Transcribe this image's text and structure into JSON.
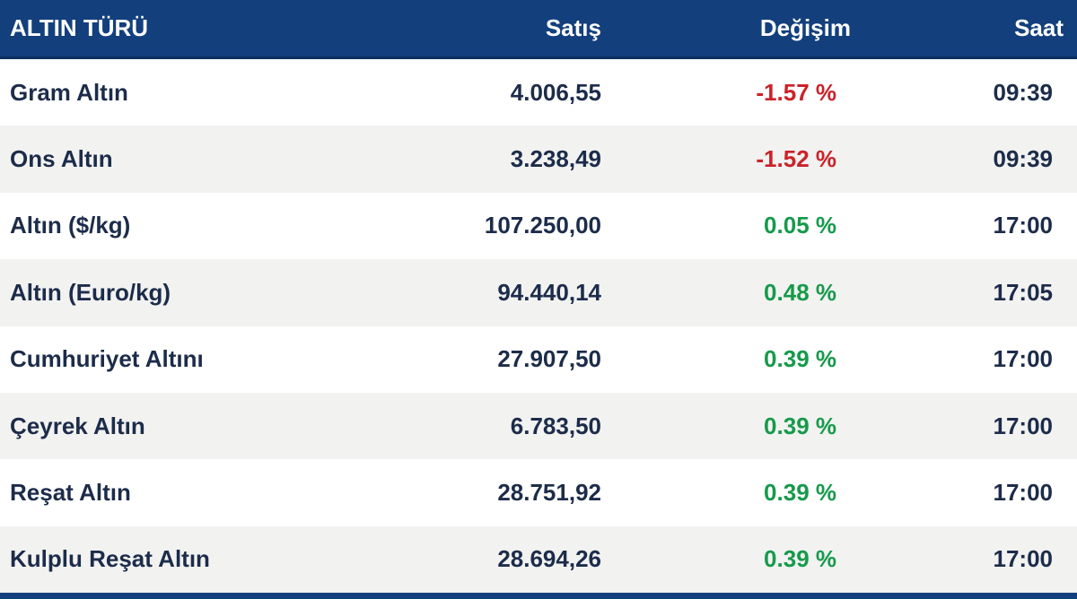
{
  "header": {
    "columns": {
      "type": "ALTIN TÜRÜ",
      "price": "Satış",
      "change": "Değişim",
      "time": "Saat"
    }
  },
  "colors": {
    "header_bg": "#133f7d",
    "header_border": "#0d2f5f",
    "row_alt_bg": "#f2f2f1",
    "text": "#1c2c4a",
    "negative": "#cb2229",
    "positive": "#169a4b"
  },
  "table": {
    "rows": [
      {
        "name": "Gram Altın",
        "price": "4.006,55",
        "change": "-1.57 %",
        "change_class": "neg",
        "time": "09:39"
      },
      {
        "name": "Ons Altın",
        "price": "3.238,49",
        "change": "-1.52 %",
        "change_class": "neg",
        "time": "09:39"
      },
      {
        "name": "Altın ($/kg)",
        "price": "107.250,00",
        "change": "0.05 %",
        "change_class": "pos",
        "time": "17:00"
      },
      {
        "name": "Altın (Euro/kg)",
        "price": "94.440,14",
        "change": "0.48 %",
        "change_class": "pos",
        "time": "17:05"
      },
      {
        "name": "Cumhuriyet Altını",
        "price": "27.907,50",
        "change": "0.39 %",
        "change_class": "pos",
        "time": "17:00"
      },
      {
        "name": "Çeyrek Altın",
        "price": "6.783,50",
        "change": "0.39 %",
        "change_class": "pos",
        "time": "17:00"
      },
      {
        "name": "Reşat Altın",
        "price": "28.751,92",
        "change": "0.39 %",
        "change_class": "pos",
        "time": "17:00"
      },
      {
        "name": "Kulplu Reşat Altın",
        "price": "28.694,26",
        "change": "0.39 %",
        "change_class": "pos",
        "time": "17:00"
      }
    ]
  }
}
